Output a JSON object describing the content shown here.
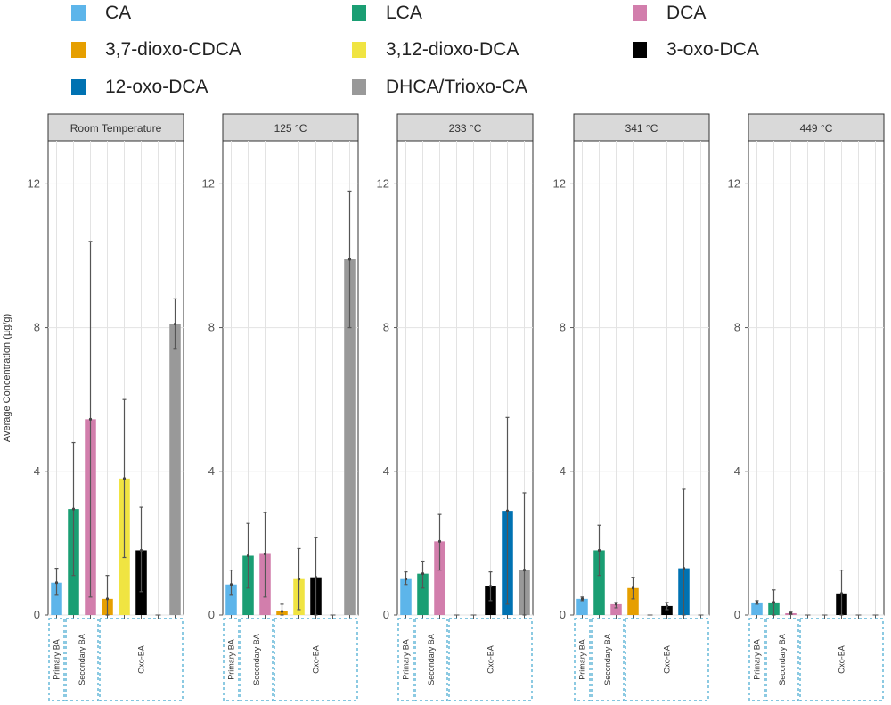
{
  "chart_data": {
    "type": "bar",
    "ylabel": "Average Concentration (µg/g)",
    "ylim": [
      0,
      13.2
    ],
    "yticks": [
      0,
      4,
      8,
      12
    ],
    "legend": [
      {
        "name": "CA",
        "color": "#5DB5EA"
      },
      {
        "name": "LCA",
        "color": "#1A9E73"
      },
      {
        "name": "DCA",
        "color": "#D27EAC"
      },
      {
        "name": "3,7-dioxo-CDCA",
        "color": "#E69F00"
      },
      {
        "name": "3,12-dioxo-DCA",
        "color": "#F0E442"
      },
      {
        "name": "3-oxo-DCA",
        "color": "#000000"
      },
      {
        "name": "12-oxo-DCA",
        "color": "#0072B2"
      },
      {
        "name": "DHCA/Trioxo-CA",
        "color": "#999999"
      }
    ],
    "categories": [
      "CA",
      "LCA",
      "DCA",
      "3,7-dioxo-CDCA",
      "3,12-dioxo-DCA",
      "3-oxo-DCA",
      "12-oxo-DCA",
      "DHCA/Trioxo-CA"
    ],
    "groups": [
      {
        "label": "Primary BA",
        "span": [
          0,
          0
        ]
      },
      {
        "label": "Secondary BA",
        "span": [
          1,
          2
        ]
      },
      {
        "label": "Oxo-BA",
        "span": [
          3,
          7
        ]
      }
    ],
    "panels": [
      {
        "title": "Room Temperature",
        "values": [
          0.9,
          2.95,
          5.45,
          0.45,
          3.8,
          1.8,
          0,
          8.1
        ],
        "err_low": [
          0.55,
          1.1,
          0.5,
          -0.2,
          1.6,
          0.65,
          0,
          7.4
        ],
        "err_high": [
          1.3,
          4.8,
          10.4,
          1.1,
          6.0,
          3.0,
          0,
          8.8
        ]
      },
      {
        "title": "125 °C",
        "values": [
          0.85,
          1.65,
          1.7,
          0.1,
          1.0,
          1.05,
          0,
          9.9
        ],
        "err_low": [
          0.55,
          0.75,
          0.5,
          0.0,
          0.15,
          0.0,
          0,
          8.0
        ],
        "err_high": [
          1.25,
          2.55,
          2.85,
          0.3,
          1.85,
          2.15,
          0,
          11.8
        ]
      },
      {
        "title": "233 °C",
        "values": [
          1.0,
          1.15,
          2.05,
          0,
          0,
          0.8,
          2.9,
          1.25
        ],
        "err_low": [
          0.85,
          0.75,
          1.25,
          0,
          0,
          0.4,
          0.3,
          -0.9
        ],
        "err_high": [
          1.2,
          1.5,
          2.8,
          0,
          0,
          1.2,
          5.5,
          3.4
        ]
      },
      {
        "title": "341 °C",
        "values": [
          0.45,
          1.8,
          0.3,
          0.75,
          0,
          0.25,
          1.3,
          0
        ],
        "err_low": [
          0.4,
          1.1,
          0.2,
          0.45,
          0,
          0.15,
          -0.9,
          0
        ],
        "err_high": [
          0.5,
          2.5,
          0.35,
          1.05,
          0,
          0.35,
          3.5,
          0
        ]
      },
      {
        "title": "449 °C",
        "values": [
          0.35,
          0.35,
          0.05,
          0,
          0,
          0.6,
          0,
          0
        ],
        "err_low": [
          0.3,
          0.0,
          0.02,
          0,
          0,
          0.0,
          0,
          0
        ],
        "err_high": [
          0.4,
          0.7,
          0.08,
          0,
          0,
          1.25,
          0,
          0
        ]
      }
    ]
  }
}
